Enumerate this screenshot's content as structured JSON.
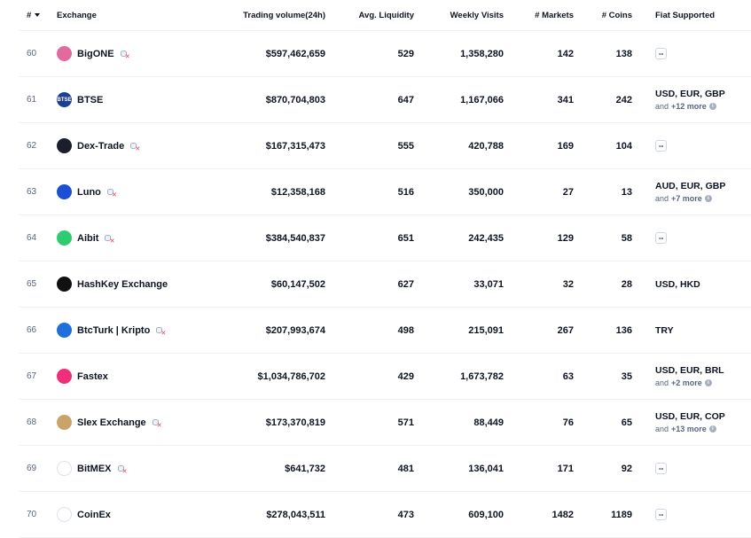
{
  "columns": {
    "rank": "#",
    "exchange": "Exchange",
    "volume": "Trading volume(24h)",
    "liquidity": "Avg. Liquidity",
    "visits": "Weekly Visits",
    "markets": "# Markets",
    "coins": "# Coins",
    "fiat": "Fiat Supported"
  },
  "rows": [
    {
      "rank": "60",
      "name": "BigONE",
      "logo_icon": "bigone-logo-icon",
      "logo_color": "#e16a9e",
      "logo_text": "",
      "untracked": true,
      "volume": "$597,462,659",
      "liquidity": "529",
      "visits": "1,358,280",
      "markets": "142",
      "coins": "138",
      "fiat": "",
      "fiat_more": "",
      "fiat_dash": "--"
    },
    {
      "rank": "61",
      "name": "BTSE",
      "logo_icon": "btse-logo-icon",
      "logo_color": "#1c3f8f",
      "logo_text": "BTSE",
      "untracked": false,
      "volume": "$870,704,803",
      "liquidity": "647",
      "visits": "1,167,066",
      "markets": "341",
      "coins": "242",
      "fiat": "USD, EUR, GBP",
      "fiat_more_prefix": "and",
      "fiat_more": "+12 more",
      "fiat_dash": ""
    },
    {
      "rank": "62",
      "name": "Dex-Trade",
      "logo_icon": "dex-trade-logo-icon",
      "logo_color": "#1a1f2b",
      "logo_text": "",
      "untracked": true,
      "volume": "$167,315,473",
      "liquidity": "555",
      "visits": "420,788",
      "markets": "169",
      "coins": "104",
      "fiat": "",
      "fiat_more": "",
      "fiat_dash": "--"
    },
    {
      "rank": "63",
      "name": "Luno",
      "logo_icon": "luno-logo-icon",
      "logo_color": "#1d4fd6",
      "logo_text": "",
      "untracked": true,
      "volume": "$12,358,168",
      "liquidity": "516",
      "visits": "350,000",
      "markets": "27",
      "coins": "13",
      "fiat": "AUD, EUR, GBP",
      "fiat_more_prefix": "and",
      "fiat_more": "+7 more",
      "fiat_dash": ""
    },
    {
      "rank": "64",
      "name": "Aibit",
      "logo_icon": "aibit-logo-icon",
      "logo_color": "#2ecc71",
      "logo_text": "",
      "untracked": true,
      "volume": "$384,540,837",
      "liquidity": "651",
      "visits": "242,435",
      "markets": "129",
      "coins": "58",
      "fiat": "",
      "fiat_more": "",
      "fiat_dash": "--"
    },
    {
      "rank": "65",
      "name": "HashKey Exchange",
      "logo_icon": "hashkey-logo-icon",
      "logo_color": "#111111",
      "logo_text": "",
      "untracked": false,
      "volume": "$60,147,502",
      "liquidity": "627",
      "visits": "33,071",
      "markets": "32",
      "coins": "28",
      "fiat": "USD, HKD",
      "fiat_more": "",
      "fiat_dash": ""
    },
    {
      "rank": "66",
      "name": "BtcTurk | Kripto",
      "logo_icon": "btcturk-logo-icon",
      "logo_color": "#1e6fd9",
      "logo_text": "",
      "untracked": true,
      "volume": "$207,993,674",
      "liquidity": "498",
      "visits": "215,091",
      "markets": "267",
      "coins": "136",
      "fiat": "TRY",
      "fiat_more": "",
      "fiat_dash": ""
    },
    {
      "rank": "67",
      "name": "Fastex",
      "logo_icon": "fastex-logo-icon",
      "logo_color": "#ef2f7a",
      "logo_text": "",
      "untracked": false,
      "volume": "$1,034,786,702",
      "liquidity": "429",
      "visits": "1,673,782",
      "markets": "63",
      "coins": "35",
      "fiat": "USD, EUR, BRL",
      "fiat_more_prefix": "and",
      "fiat_more": "+2 more",
      "fiat_dash": ""
    },
    {
      "rank": "68",
      "name": "Slex Exchange",
      "logo_icon": "slex-logo-icon",
      "logo_color": "#c9a46a",
      "logo_text": "",
      "untracked": true,
      "volume": "$173,370,819",
      "liquidity": "571",
      "visits": "88,449",
      "markets": "76",
      "coins": "65",
      "fiat": "USD, EUR, COP",
      "fiat_more_prefix": "and",
      "fiat_more": "+13 more",
      "fiat_dash": ""
    },
    {
      "rank": "69",
      "name": "BitMEX",
      "logo_icon": "bitmex-logo-icon",
      "logo_color": "#ffffff",
      "logo_text": "",
      "untracked": true,
      "volume": "$641,732",
      "liquidity": "481",
      "visits": "136,041",
      "markets": "171",
      "coins": "92",
      "fiat": "",
      "fiat_more": "",
      "fiat_dash": "--"
    },
    {
      "rank": "70",
      "name": "CoinEx",
      "logo_icon": "coinex-logo-icon",
      "logo_color": "#ffffff",
      "logo_text": "",
      "untracked": false,
      "volume": "$278,043,511",
      "liquidity": "473",
      "visits": "609,100",
      "markets": "1482",
      "coins": "1189",
      "fiat": "",
      "fiat_more": "",
      "fiat_dash": "--"
    }
  ]
}
